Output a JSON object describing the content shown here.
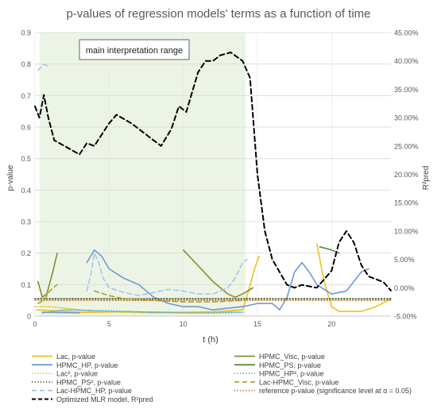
{
  "chart_data": {
    "type": "line",
    "title": "p-values of regression models' terms as a function of time",
    "xlabel": "t (h)",
    "ylabel_left": "p-value",
    "ylabel_right": "R²pred",
    "xlim": [
      0,
      24
    ],
    "ylim_left": [
      0,
      0.9
    ],
    "ylim_right": [
      -0.05,
      0.45
    ],
    "x_ticks": [
      0,
      5,
      10,
      15,
      20
    ],
    "y_left_ticks": [
      0,
      0.1,
      0.2,
      0.3,
      0.4,
      0.5,
      0.6,
      0.7,
      0.8,
      0.9
    ],
    "y_left_tick_labels": [
      "0",
      "0.1",
      "0.2",
      "0.3",
      "0.4",
      "0.5",
      "0.6",
      "0.7",
      "0.8",
      "0.9"
    ],
    "y_right_ticks": [
      -0.05,
      0,
      0.05,
      0.1,
      0.15,
      0.2,
      0.25,
      0.3,
      0.35,
      0.4,
      0.45
    ],
    "y_right_tick_labels": [
      "-5.00%",
      "0.00%",
      "5.00%",
      "10.00%",
      "15.00%",
      "20.00%",
      "25.00%",
      "30.00%",
      "35.00%",
      "40.00%",
      "45.00%"
    ],
    "grid": true,
    "legend_position": "bottom",
    "annotations": {
      "range_label": "main interpretation range",
      "range_x": [
        0.3,
        14.2
      ]
    },
    "series": [
      {
        "name": "Lac, p-value",
        "axis": "left",
        "color": "#e6c420",
        "dash": "solid",
        "points": [
          [
            0.1,
            0.02
          ],
          [
            1,
            0.018
          ],
          [
            2,
            0.015
          ],
          [
            3,
            0.012
          ],
          [
            4,
            0.012
          ],
          [
            6,
            0.014
          ],
          [
            8,
            0.013
          ],
          [
            10,
            0.012
          ],
          [
            12,
            0.012
          ],
          [
            13,
            0.014
          ],
          [
            14,
            0.02
          ],
          [
            14.4,
            0.08
          ],
          [
            14.8,
            0.15
          ],
          [
            15.1,
            0.19
          ],
          null,
          [
            19,
            0.23
          ],
          [
            19.5,
            0.11
          ],
          [
            20,
            0.03
          ],
          [
            20.5,
            0.015
          ],
          [
            22,
            0.015
          ],
          [
            23,
            0.03
          ],
          [
            24,
            0.055
          ]
        ]
      },
      {
        "name": "HPMC_Visc, p-value",
        "axis": "left",
        "color": "#8a8a2e",
        "dash": "solid",
        "points": [
          [
            0.2,
            0.11
          ],
          [
            0.5,
            0.06
          ],
          [
            0.8,
            0.07
          ],
          [
            1.2,
            0.14
          ],
          [
            1.5,
            0.2
          ],
          null,
          [
            10,
            0.21
          ],
          [
            11,
            0.16
          ],
          [
            12,
            0.11
          ],
          [
            13,
            0.07
          ],
          [
            13.5,
            0.06
          ],
          [
            14,
            0.07
          ],
          [
            14.7,
            0.09
          ]
        ]
      },
      {
        "name": "HPMC_HP, p-value",
        "axis": "left",
        "color": "#6f98d4",
        "dash": "solid",
        "points": [
          [
            3.5,
            0.17
          ],
          [
            4,
            0.21
          ],
          [
            4.5,
            0.19
          ],
          [
            5,
            0.15
          ],
          [
            6,
            0.12
          ],
          [
            7,
            0.1
          ],
          [
            8,
            0.06
          ],
          [
            9,
            0.04
          ],
          [
            10,
            0.03
          ],
          [
            11,
            0.03
          ],
          [
            12,
            0.02
          ],
          [
            13,
            0.025
          ],
          [
            14,
            0.03
          ],
          [
            15,
            0.04
          ],
          [
            16,
            0.04
          ],
          [
            16.5,
            0.02
          ],
          [
            17,
            0.06
          ],
          [
            17.5,
            0.14
          ],
          [
            18,
            0.17
          ],
          [
            18.5,
            0.14
          ],
          [
            19,
            0.1
          ],
          [
            20,
            0.07
          ],
          [
            21,
            0.08
          ],
          [
            22,
            0.14
          ],
          [
            22.5,
            0.15
          ],
          null,
          [
            0.5,
            0.012
          ],
          [
            3,
            0.01
          ]
        ]
      },
      {
        "name": "HPMC_PS, p-value",
        "axis": "left",
        "color": "#5a8a3a",
        "dash": "solid",
        "points": [
          [
            19.2,
            0.22
          ],
          [
            20,
            0.21
          ],
          [
            20.5,
            0.2
          ]
        ]
      },
      {
        "name": "Lac², p-value",
        "axis": "left",
        "color": "#e6c420",
        "dash": "dot",
        "points": [
          [
            0,
            0.03
          ],
          [
            1,
            0.03
          ],
          [
            2,
            0.025
          ],
          [
            4,
            0.015
          ],
          [
            6,
            0.012
          ],
          [
            8,
            0.01
          ],
          [
            10,
            0.012
          ],
          [
            12,
            0.015
          ],
          [
            14,
            0.02
          ]
        ]
      },
      {
        "name": "HPMC_HP², p-value",
        "axis": "left",
        "color": "#5aa5e0",
        "dash": "dot",
        "points": [
          [
            0.5,
            0.01
          ],
          [
            2,
            0.02
          ],
          [
            4,
            0.018
          ],
          [
            6,
            0.015
          ],
          [
            8,
            0.012
          ],
          [
            10,
            0.01
          ],
          [
            12,
            0.01
          ],
          [
            14,
            0.012
          ]
        ]
      },
      {
        "name": "HPMC_PS², p-value",
        "axis": "left",
        "color": "#405a30",
        "dash": "dot",
        "points": [
          [
            0,
            0.055
          ],
          [
            24,
            0.055
          ]
        ]
      },
      {
        "name": "Lac-HPMC_Visc, p-value",
        "axis": "left",
        "color": "#b0a030",
        "dash": "dash",
        "points": [
          [
            0.2,
            0.04
          ],
          [
            0.6,
            0.05
          ],
          [
            1,
            0.08
          ],
          [
            1.5,
            0.1
          ],
          null,
          [
            4,
            0.08
          ],
          [
            5,
            0.065
          ],
          [
            6,
            0.055
          ],
          [
            8,
            0.05
          ],
          [
            10,
            0.045
          ],
          [
            12,
            0.045
          ],
          [
            14,
            0.05
          ]
        ]
      },
      {
        "name": "Lac-HPMC_HP, p-value",
        "axis": "left",
        "color": "#a8c4ea",
        "dash": "dash",
        "points": [
          [
            3.5,
            0.08
          ],
          [
            3.8,
            0.14
          ],
          [
            4,
            0.2
          ],
          [
            4.3,
            0.17
          ],
          [
            4.6,
            0.12
          ],
          [
            5,
            0.09
          ],
          [
            6,
            0.075
          ],
          [
            7,
            0.065
          ],
          [
            8,
            0.075
          ],
          [
            9,
            0.085
          ],
          [
            10,
            0.08
          ],
          [
            11,
            0.07
          ],
          [
            12,
            0.07
          ],
          [
            13,
            0.09
          ],
          [
            13.5,
            0.12
          ],
          [
            14,
            0.17
          ],
          [
            14.3,
            0.18
          ],
          null,
          [
            0.2,
            0.78
          ],
          [
            0.6,
            0.8
          ],
          [
            1,
            0.79
          ]
        ]
      },
      {
        "name": "reference p-value (significance level at α = 0.05)",
        "axis": "left",
        "color": "#c0701a",
        "dash": "dot",
        "points": [
          [
            0,
            0.05
          ],
          [
            24,
            0.05
          ]
        ]
      },
      {
        "name": "Optimized MLR model, R²pred",
        "axis": "right",
        "color": "#000000",
        "dash": "dash",
        "points": [
          [
            0,
            0.32
          ],
          [
            0.3,
            0.3
          ],
          [
            0.6,
            0.34
          ],
          [
            0.9,
            0.3
          ],
          [
            1.3,
            0.26
          ],
          [
            2,
            0.25
          ],
          [
            3,
            0.235
          ],
          [
            3.5,
            0.255
          ],
          [
            4,
            0.25
          ],
          [
            5,
            0.29
          ],
          [
            5.5,
            0.305
          ],
          [
            6.5,
            0.29
          ],
          [
            7.5,
            0.27
          ],
          [
            8.5,
            0.25
          ],
          [
            9.2,
            0.28
          ],
          [
            9.7,
            0.32
          ],
          [
            10.2,
            0.31
          ],
          [
            11,
            0.38
          ],
          [
            11.5,
            0.4
          ],
          [
            12,
            0.4
          ],
          [
            12.5,
            0.41
          ],
          [
            13.2,
            0.415
          ],
          [
            14,
            0.4
          ],
          [
            14.5,
            0.37
          ],
          [
            15,
            0.2
          ],
          [
            15.5,
            0.1
          ],
          [
            16,
            0.05
          ],
          [
            17,
            0.005
          ],
          [
            17.5,
            0.0
          ],
          [
            18,
            0.005
          ],
          [
            19,
            0.0
          ],
          [
            19.5,
            0.015
          ],
          [
            20,
            0.03
          ],
          [
            20.5,
            0.08
          ],
          [
            21,
            0.1
          ],
          [
            21.5,
            0.08
          ],
          [
            22,
            0.04
          ],
          [
            22.5,
            0.02
          ],
          [
            23,
            0.015
          ],
          [
            23.5,
            0.01
          ],
          [
            24,
            -0.005
          ]
        ]
      }
    ]
  }
}
